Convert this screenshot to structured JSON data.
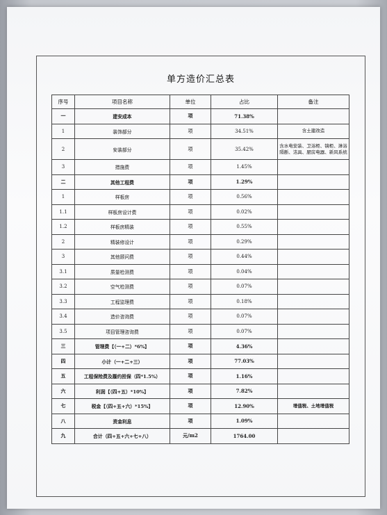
{
  "title": "单方造价汇总表",
  "columns": [
    "序号",
    "项目名称",
    "单位",
    "占比",
    "备注"
  ],
  "rows": [
    {
      "no": "一",
      "name": "建安成本",
      "unit": "项",
      "ratio": "71.38%",
      "note": "",
      "bold": true
    },
    {
      "no": "1",
      "name": "装饰部分",
      "unit": "项",
      "ratio": "34.51%",
      "note": "含土建改造"
    },
    {
      "no": "2",
      "name": "安装部分",
      "unit": "项",
      "ratio": "35.42%",
      "note": "含水电安装、卫浴柜、镜柜、淋浴隔断、洁具、厨房电器、新风系统"
    },
    {
      "no": "3",
      "name": "措施费",
      "unit": "项",
      "ratio": "1.45%",
      "note": ""
    },
    {
      "no": "二",
      "name": "其他工程费",
      "unit": "项",
      "ratio": "1.29%",
      "note": "",
      "bold": true
    },
    {
      "no": "1",
      "name": "样板房",
      "unit": "项",
      "ratio": "0.56%",
      "note": ""
    },
    {
      "no": "1.1",
      "name": "样板房设计费",
      "unit": "项",
      "ratio": "0.02%",
      "note": ""
    },
    {
      "no": "1.2",
      "name": "样板房精装",
      "unit": "项",
      "ratio": "0.55%",
      "note": ""
    },
    {
      "no": "2",
      "name": "精装修设计",
      "unit": "项",
      "ratio": "0.29%",
      "note": ""
    },
    {
      "no": "3",
      "name": "其他顾问费",
      "unit": "项",
      "ratio": "0.44%",
      "note": ""
    },
    {
      "no": "3.1",
      "name": "质量检测费",
      "unit": "项",
      "ratio": "0.04%",
      "note": ""
    },
    {
      "no": "3.2",
      "name": "空气检测费",
      "unit": "项",
      "ratio": "0.07%",
      "note": ""
    },
    {
      "no": "3.3",
      "name": "工程监理费",
      "unit": "项",
      "ratio": "0.18%",
      "note": ""
    },
    {
      "no": "3.4",
      "name": "造价咨询费",
      "unit": "项",
      "ratio": "0.07%",
      "note": ""
    },
    {
      "no": "3.5",
      "name": "项目管理咨询费",
      "unit": "项",
      "ratio": "0.07%",
      "note": ""
    },
    {
      "no": "三",
      "name": "管理费【（一+二）*6%】",
      "unit": "项",
      "ratio": "4.36%",
      "note": "",
      "bold": true
    },
    {
      "no": "四",
      "name": "小计（一+二+三）",
      "unit": "项",
      "ratio": "77.03%",
      "note": "",
      "bold": true
    },
    {
      "no": "五",
      "name": "工程保险费及履约担保（四*1.5%）",
      "unit": "项",
      "ratio": "1.16%",
      "note": "",
      "bold": true
    },
    {
      "no": "六",
      "name": "利润【（四+五）*10%】",
      "unit": "项",
      "ratio": "7.82%",
      "note": "",
      "bold": true
    },
    {
      "no": "七",
      "name": "税金【（四+五+六）*15%】",
      "unit": "项",
      "ratio": "12.90%",
      "note": "增值税、土地增值税",
      "bold": true
    },
    {
      "no": "八",
      "name": "资金利息",
      "unit": "项",
      "ratio": "1.09%",
      "note": "",
      "bold": true
    },
    {
      "no": "九",
      "name": "合计（四+五+六+七+八）",
      "unit": "元/m2",
      "ratio": "1764.00",
      "note": "",
      "bold": true
    }
  ]
}
